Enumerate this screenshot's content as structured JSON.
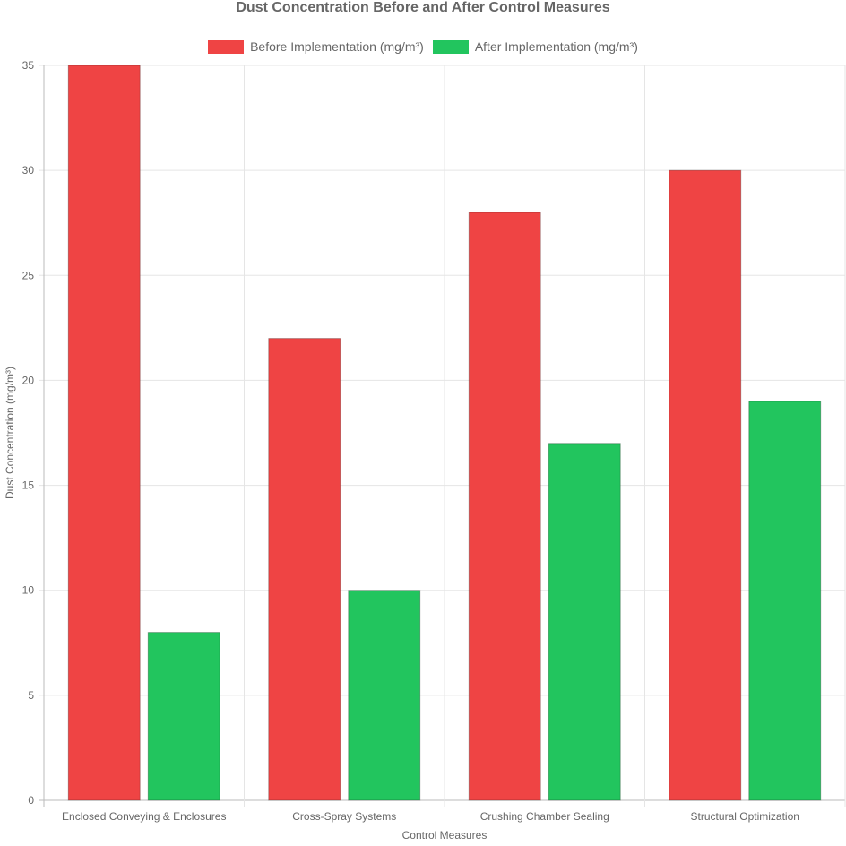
{
  "chart_data": {
    "type": "bar",
    "title": "Dust Concentration Before and After Control Measures",
    "xlabel": "Control Measures",
    "ylabel": "Dust Concentration (mg/m³)",
    "categories": [
      "Enclosed Conveying & Enclosures",
      "Cross-Spray Systems",
      "Crushing Chamber Sealing",
      "Structural Optimization"
    ],
    "series": [
      {
        "name": "Before Implementation (mg/m³)",
        "values": [
          35,
          22,
          28,
          30
        ],
        "color": "#ef4444"
      },
      {
        "name": "After Implementation (mg/m³)",
        "values": [
          8,
          10,
          17,
          19
        ],
        "color": "#22c55e"
      }
    ],
    "ylim": [
      0,
      35
    ],
    "yticks": [
      0,
      5,
      10,
      15,
      20,
      25,
      30,
      35
    ],
    "grid": true,
    "legend_position": "top"
  }
}
